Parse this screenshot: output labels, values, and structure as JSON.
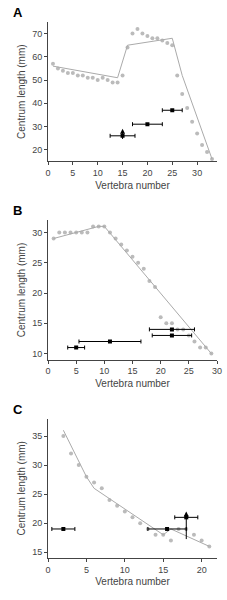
{
  "chart_data": [
    {
      "type": "scatter",
      "title": "A",
      "xlabel": "Vertebra number",
      "ylabel": "Centrum length (mm)",
      "xlim": [
        0,
        34
      ],
      "ylim": [
        15,
        75
      ],
      "xticks": [
        0,
        5,
        10,
        15,
        20,
        25,
        30
      ],
      "yticks": [
        20,
        30,
        40,
        50,
        60,
        70
      ],
      "grid": false,
      "series": [
        {
          "type": "scatter",
          "color": "#bbbbbb",
          "marker": "circle",
          "x": [
            1,
            2,
            3,
            4,
            5,
            6,
            7,
            8,
            9,
            10,
            11,
            12,
            13,
            14,
            15,
            16,
            17,
            18,
            19,
            20,
            21,
            22,
            23,
            24,
            25,
            26,
            27,
            28,
            29,
            30,
            31,
            32,
            33
          ],
          "values": [
            57,
            55,
            54,
            53,
            53,
            52,
            52,
            51,
            51,
            50,
            51,
            50,
            49,
            49,
            52,
            64,
            70,
            72,
            70,
            69,
            68,
            68,
            67,
            66,
            65,
            52,
            44,
            38,
            32,
            27,
            22,
            19,
            16
          ]
        },
        {
          "type": "line",
          "color": "#aaaaaa",
          "line_style": "solid",
          "x": [
            1,
            14,
            16,
            25,
            27,
            33
          ],
          "values": [
            56,
            51,
            65,
            68,
            52,
            16
          ]
        },
        {
          "type": "errorbar",
          "color": "#000000",
          "marker": "square",
          "x": [
            15,
            20,
            25
          ],
          "values": [
            26,
            31,
            37
          ],
          "xerr": [
            2.5,
            3.0,
            2.0
          ]
        }
      ],
      "arrow": {
        "x": 15,
        "y_base": 24,
        "y_tip": 29
      }
    },
    {
      "type": "scatter",
      "title": "B",
      "xlabel": "Vertebra number",
      "ylabel": "Centrum length (mm)",
      "xlim": [
        0,
        30
      ],
      "ylim": [
        9,
        32
      ],
      "xticks": [
        0,
        5,
        10,
        15,
        20,
        25,
        30
      ],
      "yticks": [
        10,
        15,
        20,
        25,
        30
      ],
      "grid": false,
      "series": [
        {
          "type": "scatter",
          "color": "#bbbbbb",
          "marker": "circle",
          "x": [
            1,
            2,
            3,
            4,
            5,
            6,
            7,
            8,
            9,
            10,
            11,
            12,
            13,
            14,
            15,
            16,
            17,
            18,
            19,
            20,
            21,
            22,
            23,
            24,
            25,
            26,
            27,
            28,
            29
          ],
          "values": [
            29,
            30,
            30,
            30,
            30,
            30,
            30,
            31,
            31,
            31,
            30,
            29,
            28,
            27,
            26,
            25,
            24,
            22,
            21,
            16,
            15,
            15,
            14,
            14,
            13,
            12,
            11,
            11,
            10
          ]
        },
        {
          "type": "line",
          "color": "#aaaaaa",
          "line_style": "solid",
          "x": [
            1,
            9,
            10,
            29
          ],
          "values": [
            29,
            31,
            31,
            10
          ]
        },
        {
          "type": "errorbar",
          "color": "#000000",
          "marker": "square",
          "x": [
            5,
            11,
            22,
            22
          ],
          "values": [
            11,
            12,
            13,
            14
          ],
          "xerr": [
            1.5,
            5.5,
            3.5,
            4.0
          ]
        }
      ]
    },
    {
      "type": "scatter",
      "title": "C",
      "xlabel": "Vertebra number",
      "ylabel": "Centrum length (mm)",
      "xlim": [
        0,
        22
      ],
      "ylim": [
        14,
        38
      ],
      "xticks": [
        0,
        5,
        10,
        15,
        20
      ],
      "yticks": [
        15,
        20,
        25,
        30,
        35
      ],
      "grid": false,
      "series": [
        {
          "type": "scatter",
          "color": "#bbbbbb",
          "marker": "circle",
          "x": [
            2,
            3,
            4,
            5,
            6,
            7,
            8,
            9,
            10,
            11,
            12,
            13,
            14,
            15,
            16,
            17,
            18,
            19,
            20,
            21
          ],
          "values": [
            35,
            32,
            30,
            28,
            27,
            26,
            24,
            23,
            22,
            21,
            20,
            19,
            18,
            18,
            17,
            19,
            19,
            18,
            17,
            16
          ]
        },
        {
          "type": "line",
          "color": "#aaaaaa",
          "line_style": "solid",
          "x": [
            2,
            5,
            6,
            15,
            16,
            21
          ],
          "values": [
            36,
            28,
            26,
            18,
            19,
            16
          ]
        },
        {
          "type": "errorbar",
          "color": "#000000",
          "marker": "square",
          "x": [
            2,
            15.5,
            18
          ],
          "values": [
            19,
            19,
            21
          ],
          "xerr": [
            1.5,
            2.5,
            1.5
          ]
        }
      ],
      "arrow": {
        "x": 18,
        "y_base": 17,
        "y_tip": 22
      }
    }
  ]
}
